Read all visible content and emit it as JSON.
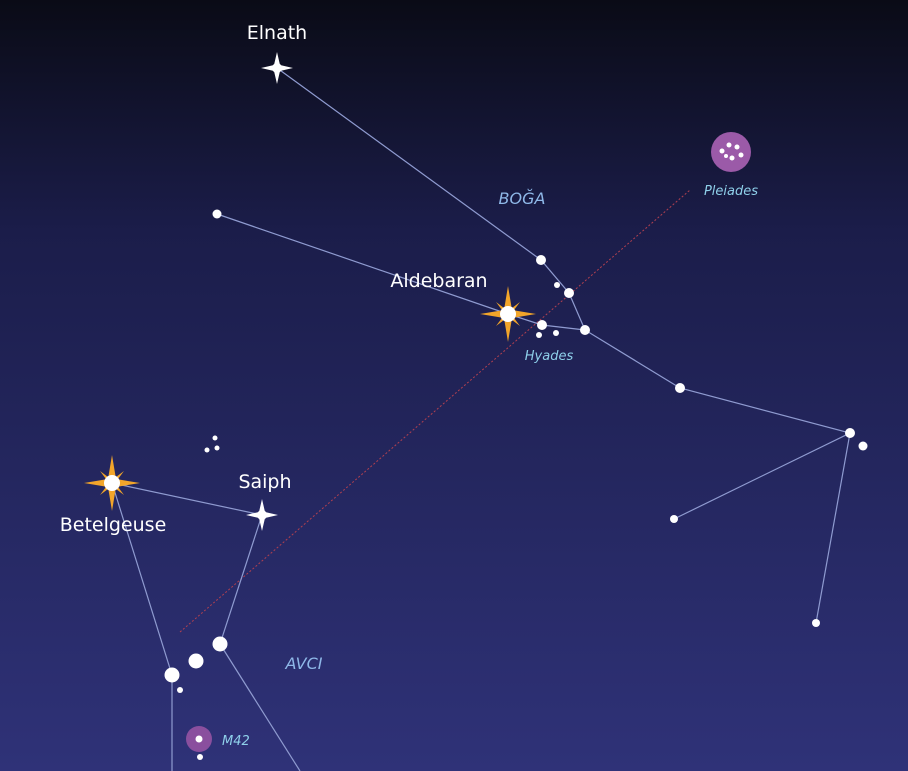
{
  "stars": [
    "Elnath",
    "Aldebaran",
    "Saiph",
    "Betelgeuse"
  ],
  "constellations": [
    "BOĞA",
    "AVCI"
  ],
  "deep_sky": [
    "Pleiades",
    "Hyades",
    "M42"
  ]
}
